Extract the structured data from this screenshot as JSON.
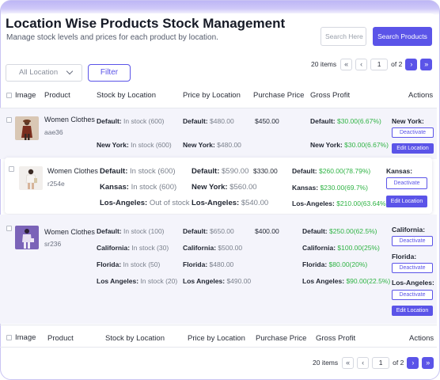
{
  "header": {
    "title": "Location Wise Products Stock Management",
    "subtitle": "Manage stock levels and prices for each product by location.",
    "search_placeholder": "Search Here",
    "search_button": "Search Products"
  },
  "filters": {
    "location_selected": "All Location",
    "filter_button": "Filter"
  },
  "pagination": {
    "count_label": "20 items",
    "first": "«",
    "prev": "‹",
    "page": "1",
    "of_label": "of 2",
    "next": "›",
    "last": "»"
  },
  "columns": [
    "Image",
    "Product",
    "Stock by Location",
    "Price by Location",
    "Purchase Price",
    "Gross Profit",
    "Actions"
  ],
  "products": [
    {
      "name": "Women Clothes",
      "sku": "aae36",
      "stock": [
        {
          "label": "Default:",
          "value": "In stock (600)"
        },
        {
          "label": "New York:",
          "value": "In stock (600)"
        }
      ],
      "price": [
        {
          "label": "Default:",
          "value": "$480.00"
        },
        {
          "label": "New York:",
          "value": "$480.00"
        }
      ],
      "purchase_price": "$450.00",
      "profit": [
        {
          "label": "Default:",
          "value": "$30.00(6.67%)"
        },
        {
          "label": "New York:",
          "value": "$30.00(6.67%)"
        }
      ],
      "actions": [
        {
          "location": "New York:",
          "deactivate": "Deactivate",
          "edit": "Edit Location"
        }
      ]
    },
    {
      "name": "Women Clothes",
      "sku": "r254e",
      "stock": [
        {
          "label": "Default:",
          "value": "In stock (600)"
        },
        {
          "label": "Kansas:",
          "value": "In stock (600)"
        },
        {
          "label": "Los-Angeles:",
          "value": "Out of stock"
        }
      ],
      "price": [
        {
          "label": "Default:",
          "value": "$590.00"
        },
        {
          "label": "New York:",
          "value": "$560.00"
        },
        {
          "label": "Los-Angeles:",
          "value": "$540.00"
        }
      ],
      "purchase_price": "$330.00",
      "profit": [
        {
          "label": "Default:",
          "value": "$260.00(78.79%)"
        },
        {
          "label": "Kansas:",
          "value": "$230.00(69.7%)"
        },
        {
          "label": "Los-Angeles:",
          "value": "$210.00(63.64%)"
        }
      ],
      "actions": [
        {
          "location": "Kansas:",
          "deactivate": "Deactivate",
          "edit": "Edit Location"
        }
      ]
    },
    {
      "name": "Women Clothes",
      "sku": "sr236",
      "stock": [
        {
          "label": "Default:",
          "value": "In stock (100)"
        },
        {
          "label": "California:",
          "value": "In stock (30)"
        },
        {
          "label": "Florida:",
          "value": "In stock (50)"
        },
        {
          "label": "Los Angeles:",
          "value": "In stock (20)"
        }
      ],
      "price": [
        {
          "label": "Default:",
          "value": "$650.00"
        },
        {
          "label": "California:",
          "value": "$500.00"
        },
        {
          "label": "Florida:",
          "value": "$480.00"
        },
        {
          "label": "Los Angeles:",
          "value": "$490.00"
        }
      ],
      "purchase_price": "$400.00",
      "profit": [
        {
          "label": "Default:",
          "value": "$250.00(62.5%)"
        },
        {
          "label": "California:",
          "value": "$100.00(25%)"
        },
        {
          "label": "Florida:",
          "value": "$80.00(20%)"
        },
        {
          "label": "Los Angeles:",
          "value": "$90.00(22.5%)"
        }
      ],
      "actions": [
        {
          "location": "California:",
          "deactivate": "Deactivate"
        },
        {
          "location": "Florida:",
          "deactivate": "Deactivate"
        },
        {
          "location": "Los-Angeles:",
          "deactivate": "Deactivate",
          "edit": "Edit Location"
        }
      ]
    }
  ],
  "colors": {
    "accent": "#5b54e8",
    "profit": "#2fb344",
    "row_tint": "#f4f4fb"
  }
}
